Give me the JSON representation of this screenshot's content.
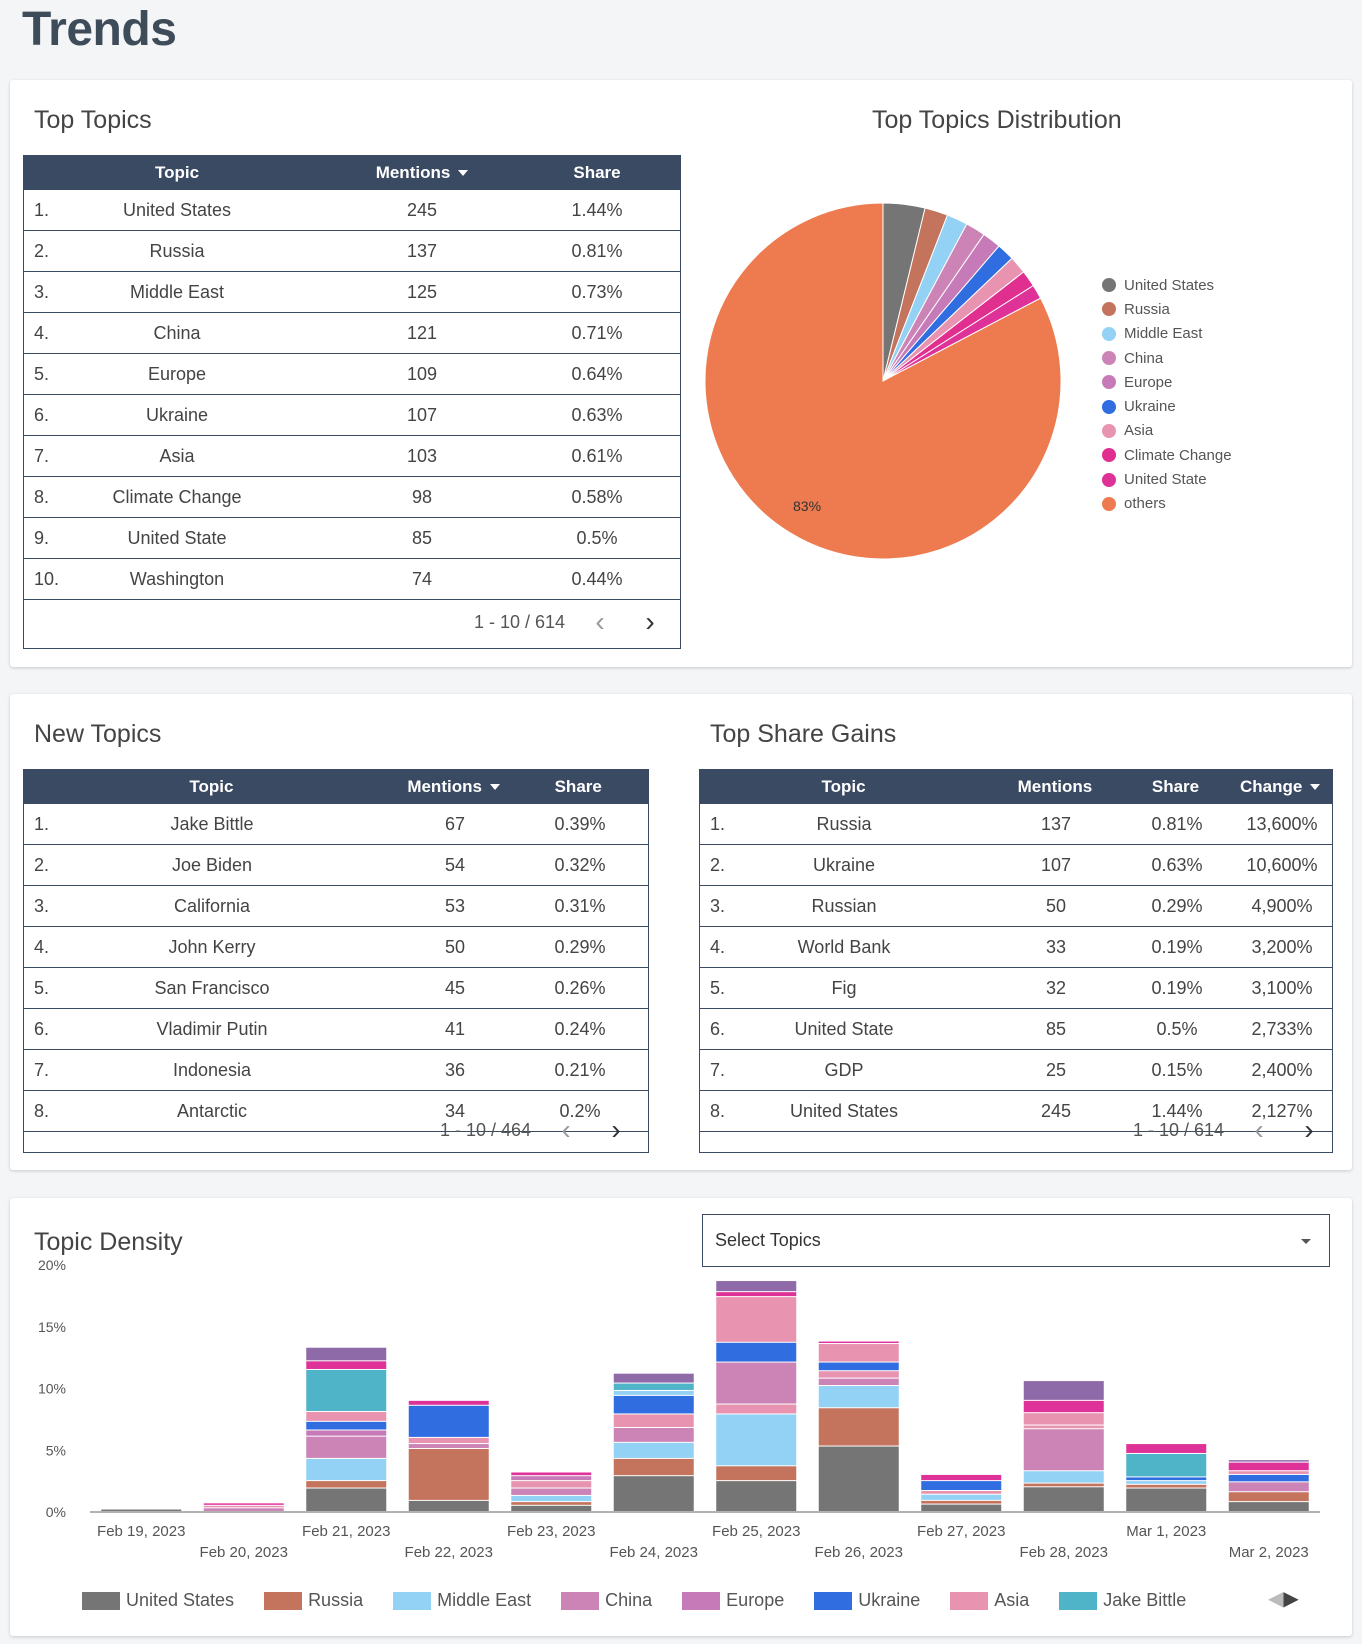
{
  "page": {
    "title": "Trends"
  },
  "top_topics": {
    "title": "Top Topics",
    "columns": [
      "Topic",
      "Mentions",
      "Share"
    ],
    "rows": [
      {
        "n": "1.",
        "topic": "United States",
        "mentions": "245",
        "share": "1.44%"
      },
      {
        "n": "2.",
        "topic": "Russia",
        "mentions": "137",
        "share": "0.81%"
      },
      {
        "n": "3.",
        "topic": "Middle East",
        "mentions": "125",
        "share": "0.73%"
      },
      {
        "n": "4.",
        "topic": "China",
        "mentions": "121",
        "share": "0.71%"
      },
      {
        "n": "5.",
        "topic": "Europe",
        "mentions": "109",
        "share": "0.64%"
      },
      {
        "n": "6.",
        "topic": "Ukraine",
        "mentions": "107",
        "share": "0.63%"
      },
      {
        "n": "7.",
        "topic": "Asia",
        "mentions": "103",
        "share": "0.61%"
      },
      {
        "n": "8.",
        "topic": "Climate Change",
        "mentions": "98",
        "share": "0.58%"
      },
      {
        "n": "9.",
        "topic": "United State",
        "mentions": "85",
        "share": "0.5%"
      },
      {
        "n": "10.",
        "topic": "Washington",
        "mentions": "74",
        "share": "0.44%"
      }
    ],
    "pager": "1 - 10 / 614"
  },
  "distribution": {
    "title": "Top Topics Distribution",
    "others_label": "83%",
    "legend": [
      {
        "name": "United States",
        "color": "#757575"
      },
      {
        "name": "Russia",
        "color": "#c4735c"
      },
      {
        "name": "Middle East",
        "color": "#94d2f5"
      },
      {
        "name": "China",
        "color": "#cc84b6"
      },
      {
        "name": "Europe",
        "color": "#c67bb8"
      },
      {
        "name": "Ukraine",
        "color": "#2f6de0"
      },
      {
        "name": "Asia",
        "color": "#e894b0"
      },
      {
        "name": "Climate Change",
        "color": "#e02f8e"
      },
      {
        "name": "United State",
        "color": "#de3298"
      },
      {
        "name": "others",
        "color": "#ee7b4f"
      }
    ]
  },
  "new_topics": {
    "title": "New Topics",
    "columns": [
      "Topic",
      "Mentions",
      "Share"
    ],
    "rows": [
      {
        "n": "1.",
        "topic": "Jake Bittle",
        "mentions": "67",
        "share": "0.39%"
      },
      {
        "n": "2.",
        "topic": "Joe Biden",
        "mentions": "54",
        "share": "0.32%"
      },
      {
        "n": "3.",
        "topic": "California",
        "mentions": "53",
        "share": "0.31%"
      },
      {
        "n": "4.",
        "topic": "John Kerry",
        "mentions": "50",
        "share": "0.29%"
      },
      {
        "n": "5.",
        "topic": "San Francisco",
        "mentions": "45",
        "share": "0.26%"
      },
      {
        "n": "6.",
        "topic": "Vladimir Putin",
        "mentions": "41",
        "share": "0.24%"
      },
      {
        "n": "7.",
        "topic": "Indonesia",
        "mentions": "36",
        "share": "0.21%"
      },
      {
        "n": "8.",
        "topic": "Antarctic",
        "mentions": "34",
        "share": "0.2%"
      }
    ],
    "pager": "1 - 10 / 464"
  },
  "share_gains": {
    "title": "Top Share Gains",
    "columns": [
      "Topic",
      "Mentions",
      "Share",
      "Change"
    ],
    "rows": [
      {
        "n": "1.",
        "topic": "Russia",
        "mentions": "137",
        "share": "0.81%",
        "change": "13,600%"
      },
      {
        "n": "2.",
        "topic": "Ukraine",
        "mentions": "107",
        "share": "0.63%",
        "change": "10,600%"
      },
      {
        "n": "3.",
        "topic": "Russian",
        "mentions": "50",
        "share": "0.29%",
        "change": "4,900%"
      },
      {
        "n": "4.",
        "topic": "World Bank",
        "mentions": "33",
        "share": "0.19%",
        "change": "3,200%"
      },
      {
        "n": "5.",
        "topic": "Fig",
        "mentions": "32",
        "share": "0.19%",
        "change": "3,100%"
      },
      {
        "n": "6.",
        "topic": "United State",
        "mentions": "85",
        "share": "0.5%",
        "change": "2,733%"
      },
      {
        "n": "7.",
        "topic": "GDP",
        "mentions": "25",
        "share": "0.15%",
        "change": "2,400%"
      },
      {
        "n": "8.",
        "topic": "United States",
        "mentions": "245",
        "share": "1.44%",
        "change": "2,127%"
      }
    ],
    "pager": "1 - 10 / 614"
  },
  "density": {
    "title": "Topic Density",
    "select_placeholder": "Select Topics",
    "legend": [
      {
        "name": "United States",
        "color": "#757575"
      },
      {
        "name": "Russia",
        "color": "#c4735c"
      },
      {
        "name": "Middle East",
        "color": "#94d2f5"
      },
      {
        "name": "China",
        "color": "#cc84b6"
      },
      {
        "name": "Europe",
        "color": "#c67bb8"
      },
      {
        "name": "Ukraine",
        "color": "#2f6de0"
      },
      {
        "name": "Asia",
        "color": "#e894b0"
      },
      {
        "name": "Jake Bittle",
        "color": "#4fb4c8"
      }
    ]
  },
  "chart_data": [
    {
      "type": "pie",
      "title": "Top Topics Distribution",
      "labels": [
        "United States",
        "Russia",
        "Middle East",
        "China",
        "Europe",
        "Ukraine",
        "Asia",
        "Climate Change",
        "United State",
        "others"
      ],
      "values": [
        3.8,
        2.1,
        1.9,
        1.8,
        1.7,
        1.6,
        1.6,
        1.5,
        1.3,
        82.7
      ],
      "colors": [
        "#757575",
        "#c4735c",
        "#94d2f5",
        "#cc84b6",
        "#c67bb8",
        "#2f6de0",
        "#e894b0",
        "#e02f8e",
        "#de3298",
        "#ee7b4f"
      ],
      "legend": "right"
    },
    {
      "type": "bar",
      "stacked": true,
      "title": "Topic Density",
      "categories": [
        "Feb 19, 2023",
        "Feb 20, 2023",
        "Feb 21, 2023",
        "Feb 22, 2023",
        "Feb 23, 2023",
        "Feb 24, 2023",
        "Feb 25, 2023",
        "Feb 26, 2023",
        "Feb 27, 2023",
        "Feb 28, 2023",
        "Mar 1, 2023",
        "Mar 2, 2023"
      ],
      "ylim": [
        0,
        20
      ],
      "yticks": [
        "0%",
        "5%",
        "10%",
        "15%",
        "20%"
      ],
      "segments": [
        [
          [
            "#757575",
            0.2
          ]
        ],
        [
          [
            "#cc84b6",
            0.3
          ],
          [
            "#e894b0",
            0.2
          ],
          [
            "#de3298",
            0.2
          ]
        ],
        [
          [
            "#757575",
            1.9
          ],
          [
            "#c4735c",
            0.6
          ],
          [
            "#94d2f5",
            1.8
          ],
          [
            "#cc84b6",
            1.8
          ],
          [
            "#c67bb8",
            0.5
          ],
          [
            "#2f6de0",
            0.7
          ],
          [
            "#e894b0",
            0.8
          ],
          [
            "#4fb4c8",
            3.4
          ],
          [
            "#de3298",
            0.7
          ],
          [
            "#8e6aa8",
            1.1
          ]
        ],
        [
          [
            "#757575",
            0.9
          ],
          [
            "#c4735c",
            4.2
          ],
          [
            "#cc84b6",
            0.4
          ],
          [
            "#e894b0",
            0.5
          ],
          [
            "#2f6de0",
            2.6
          ],
          [
            "#de3298",
            0.4
          ]
        ],
        [
          [
            "#757575",
            0.5
          ],
          [
            "#c4735c",
            0.3
          ],
          [
            "#94d2f5",
            0.5
          ],
          [
            "#cc84b6",
            0.6
          ],
          [
            "#e894b0",
            0.6
          ],
          [
            "#c67bb8",
            0.4
          ],
          [
            "#de3298",
            0.3
          ]
        ],
        [
          [
            "#757575",
            2.9
          ],
          [
            "#c4735c",
            1.4
          ],
          [
            "#94d2f5",
            1.3
          ],
          [
            "#cc84b6",
            1.2
          ],
          [
            "#e894b0",
            1.1
          ],
          [
            "#2f6de0",
            1.5
          ],
          [
            "#94d2f5",
            0.4
          ],
          [
            "#4fb4c8",
            0.6
          ],
          [
            "#8e6aa8",
            0.8
          ]
        ],
        [
          [
            "#757575",
            2.5
          ],
          [
            "#c4735c",
            1.2
          ],
          [
            "#94d2f5",
            4.2
          ],
          [
            "#e894b0",
            0.8
          ],
          [
            "#cc84b6",
            3.4
          ],
          [
            "#2f6de0",
            1.6
          ],
          [
            "#e894b0",
            3.7
          ],
          [
            "#de3298",
            0.4
          ],
          [
            "#8e6aa8",
            0.9
          ]
        ],
        [
          [
            "#757575",
            5.3
          ],
          [
            "#c4735c",
            3.1
          ],
          [
            "#94d2f5",
            1.8
          ],
          [
            "#cc84b6",
            0.6
          ],
          [
            "#e894b0",
            0.6
          ],
          [
            "#2f6de0",
            0.7
          ],
          [
            "#e894b0",
            1.5
          ],
          [
            "#de3298",
            0.2
          ]
        ],
        [
          [
            "#757575",
            0.6
          ],
          [
            "#c4735c",
            0.3
          ],
          [
            "#94d2f5",
            0.5
          ],
          [
            "#e894b0",
            0.3
          ],
          [
            "#2f6de0",
            0.8
          ],
          [
            "#de3298",
            0.5
          ]
        ],
        [
          [
            "#757575",
            2.0
          ],
          [
            "#c4735c",
            0.3
          ],
          [
            "#94d2f5",
            1.0
          ],
          [
            "#cc84b6",
            3.4
          ],
          [
            "#e894b0",
            0.3
          ],
          [
            "#e894b0",
            1.0
          ],
          [
            "#de3298",
            1.0
          ],
          [
            "#8e6aa8",
            1.6
          ]
        ],
        [
          [
            "#757575",
            1.9
          ],
          [
            "#c4735c",
            0.3
          ],
          [
            "#94d2f5",
            0.3
          ],
          [
            "#2f6de0",
            0.3
          ],
          [
            "#4fb4c8",
            1.9
          ],
          [
            "#de3298",
            0.8
          ]
        ],
        [
          [
            "#757575",
            0.8
          ],
          [
            "#c4735c",
            0.8
          ],
          [
            "#cc84b6",
            0.8
          ],
          [
            "#2f6de0",
            0.6
          ],
          [
            "#e894b0",
            0.3
          ],
          [
            "#de3298",
            0.7
          ],
          [
            "#8e6aa8",
            0.2
          ]
        ]
      ]
    }
  ]
}
